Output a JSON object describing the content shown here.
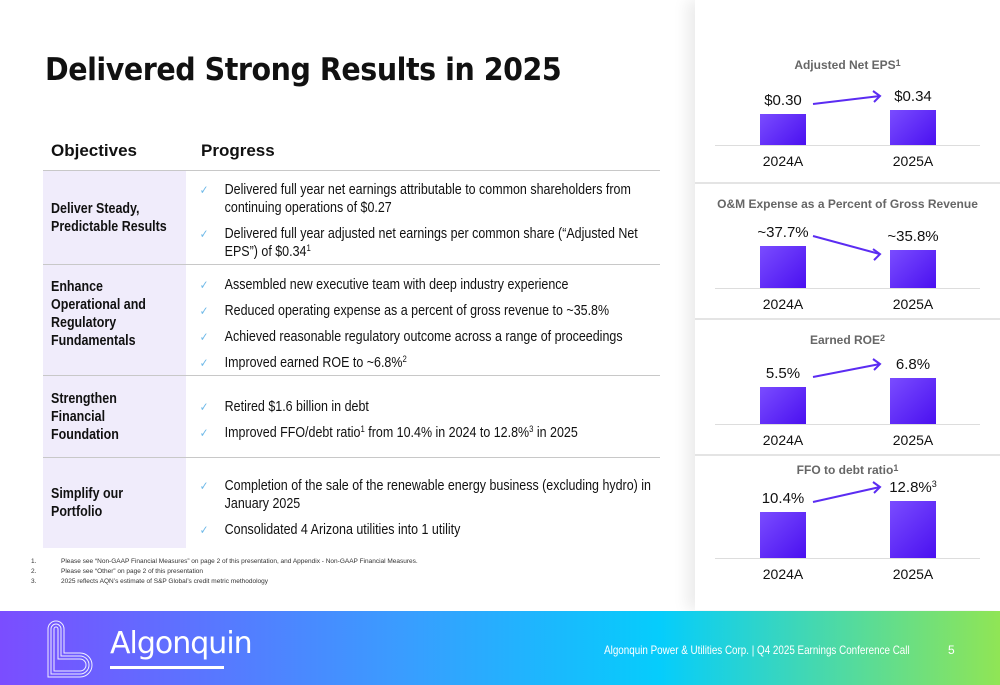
{
  "title": "Delivered Strong Results in 2025",
  "table": {
    "headers": [
      "Objectives",
      "Progress"
    ],
    "rows": [
      {
        "objective": "Deliver Steady, Predictable Results",
        "bullets": [
          {
            "text": "Delivered full year net earnings attributable to common shareholders from continuing operations of $0.27"
          },
          {
            "text": "Delivered full year adjusted net earnings per common share (“Adjusted Net EPS”) of $0.34",
            "sup": "1"
          }
        ]
      },
      {
        "objective": "Enhance Operational and Regulatory Fundamentals",
        "bullets": [
          {
            "text": "Assembled new executive team with deep industry experience"
          },
          {
            "text": "Reduced operating expense as a percent of gross revenue to ~35.8%"
          },
          {
            "text": "Achieved reasonable regulatory outcome across a range of proceedings"
          },
          {
            "text": "Improved earned ROE to ~6.8%",
            "sup": "2"
          }
        ]
      },
      {
        "objective": "Strengthen Financial Foundation",
        "bullets": [
          {
            "text": "Retired $1.6 billion in debt"
          },
          {
            "a": "Improved FFO/debt ratio",
            "supa": "1",
            "b": " from 10.4% in 2024 to 12.8%",
            "supb": "3",
            "c": " in 2025"
          }
        ]
      },
      {
        "objective": "Simplify our Portfolio",
        "bullets": [
          {
            "text": "Completion of the sale of the renewable energy business (excluding hydro) in January 2025"
          },
          {
            "text": "Consolidated 4 Arizona utilities into 1 utility"
          }
        ]
      }
    ]
  },
  "check_icon": "checkmark-icon",
  "footnotes": [
    {
      "n": "1.",
      "text": "Please see “Non-GAAP Financial Measures” on page 2 of this presentation, and Appendix - Non-GAAP Financial Measures."
    },
    {
      "n": "2.",
      "text": "Please see “Other” on page 2 of this presentation"
    },
    {
      "n": "3.",
      "text": "2025 reflects AQN’s estimate of S&P Global’s credit metric methodology"
    }
  ],
  "chart_data": [
    {
      "type": "bar",
      "title": "Adjusted Net EPS",
      "title_sup": "1",
      "categories": [
        "2024A",
        "2025A"
      ],
      "values": [
        0.3,
        0.34
      ],
      "labels": [
        "$0.30",
        "$0.34"
      ],
      "trend": "up"
    },
    {
      "type": "bar",
      "title": "O&M Expense as a Percent of Gross Revenue",
      "title_sup": "",
      "categories": [
        "2024A",
        "2025A"
      ],
      "values": [
        37.7,
        35.8
      ],
      "labels": [
        "~37.7%",
        "~35.8%"
      ],
      "trend": "down"
    },
    {
      "type": "bar",
      "title": "Earned ROE",
      "title_sup": "2",
      "categories": [
        "2024A",
        "2025A"
      ],
      "values": [
        5.5,
        6.8
      ],
      "labels": [
        "5.5%",
        "6.8%"
      ],
      "trend": "up"
    },
    {
      "type": "bar",
      "title": "FFO to debt ratio",
      "title_sup": "1",
      "categories": [
        "2024A",
        "2025A"
      ],
      "values": [
        10.4,
        12.8
      ],
      "labels": [
        "10.4%",
        "12.8%"
      ],
      "label_sups": [
        "",
        "3"
      ],
      "trend": "up"
    }
  ],
  "colors": {
    "bar": "#5a1ff5",
    "arrow": "#5b2cf2",
    "objective_bg": "#f0ecfb",
    "check": "#6cb8e8"
  },
  "footer": {
    "logo": "Algonquin",
    "text": "Algonquin Power & Utilities Corp. | Q4 2025 Earnings Conference Call",
    "page": "5"
  }
}
